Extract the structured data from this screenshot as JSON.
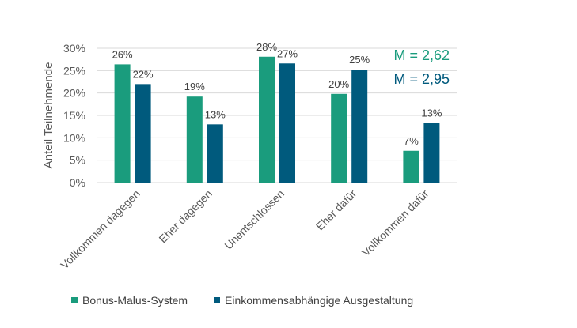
{
  "chart_data": {
    "type": "bar",
    "ylabel": "Anteil Teilnehmende",
    "ylim": [
      0,
      30
    ],
    "yticks": [
      0,
      5,
      10,
      15,
      20,
      25,
      30
    ],
    "ytick_labels": [
      "0%",
      "5%",
      "10%",
      "15%",
      "20%",
      "25%",
      "30%"
    ],
    "categories": [
      "Vollkommen dagegen",
      "Eher dagegen",
      "Unentschlossen",
      "Eher dafür",
      "Vollkommen dafür"
    ],
    "series": [
      {
        "name": "Bonus-Malus-System",
        "color": "#1a9c7d",
        "values": [
          26.4,
          19.2,
          28.1,
          19.8,
          7.1
        ],
        "labels": [
          "26%",
          "19%",
          "28%",
          "20%",
          "7%"
        ]
      },
      {
        "name": "Einkommensabhängige Ausgestaltung",
        "color": "#005a7d",
        "values": [
          22.0,
          13.0,
          26.6,
          25.2,
          13.3
        ],
        "labels": [
          "22%",
          "13%",
          "27%",
          "25%",
          "13%"
        ]
      }
    ],
    "annotations": [
      {
        "text": "M = 2,62",
        "color": "#1a9c7d"
      },
      {
        "text": "M = 2,95",
        "color": "#005a7d"
      }
    ],
    "grid": true,
    "legend_position": "bottom"
  }
}
